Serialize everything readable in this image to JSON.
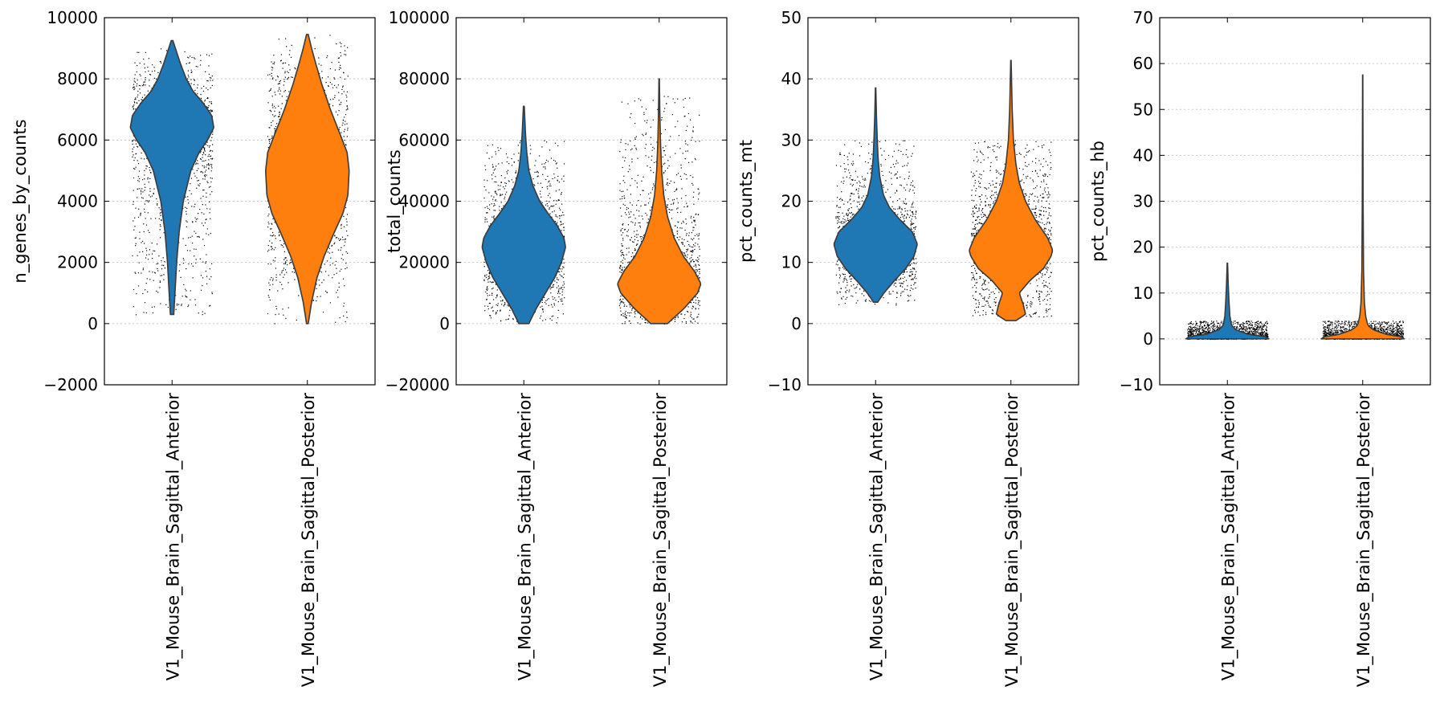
{
  "chart_data": [
    {
      "type": "violin",
      "ylabel": "n_genes_by_counts",
      "ylim": [
        -2000,
        10000
      ],
      "yticks": [
        -2000,
        0,
        2000,
        4000,
        6000,
        8000,
        10000
      ],
      "ytick_labels": [
        "−2000",
        "0",
        "2000",
        "4000",
        "6000",
        "8000",
        "10000"
      ],
      "grid": "y dotted",
      "categories": [
        "V1_Mouse_Brain_Sagittal_Anterior",
        "V1_Mouse_Brain_Sagittal_Posterior"
      ],
      "series": [
        {
          "category": "V1_Mouse_Brain_Sagittal_Anterior",
          "color": "#1f77b4",
          "min": 300,
          "max": 9250,
          "points_min": 300,
          "points_max": 9000,
          "density": [
            [
              300,
              0.04
            ],
            [
              1000,
              0.07
            ],
            [
              2000,
              0.11
            ],
            [
              3000,
              0.17
            ],
            [
              4000,
              0.27
            ],
            [
              5000,
              0.45
            ],
            [
              5600,
              0.65
            ],
            [
              6000,
              0.85
            ],
            [
              6400,
              1.0
            ],
            [
              6800,
              0.95
            ],
            [
              7200,
              0.75
            ],
            [
              7600,
              0.5
            ],
            [
              8000,
              0.34
            ],
            [
              8500,
              0.2
            ],
            [
              9000,
              0.08
            ],
            [
              9250,
              0.02
            ]
          ]
        },
        {
          "category": "V1_Mouse_Brain_Sagittal_Posterior",
          "color": "#ff7f0e",
          "min": 0,
          "max": 9450,
          "points_min": 0,
          "points_max": 9450,
          "density": [
            [
              0,
              0.02
            ],
            [
              700,
              0.1
            ],
            [
              1500,
              0.23
            ],
            [
              2200,
              0.4
            ],
            [
              3000,
              0.65
            ],
            [
              3600,
              0.85
            ],
            [
              4200,
              0.97
            ],
            [
              5000,
              1.0
            ],
            [
              5600,
              0.95
            ],
            [
              6200,
              0.78
            ],
            [
              7000,
              0.55
            ],
            [
              7800,
              0.35
            ],
            [
              8500,
              0.2
            ],
            [
              9000,
              0.1
            ],
            [
              9450,
              0.02
            ]
          ]
        }
      ]
    },
    {
      "type": "violin",
      "ylabel": "total_counts",
      "ylim": [
        -20000,
        100000
      ],
      "yticks": [
        -20000,
        0,
        20000,
        40000,
        60000,
        80000,
        100000
      ],
      "ytick_labels": [
        "−20000",
        "0",
        "20000",
        "40000",
        "60000",
        "80000",
        "100000"
      ],
      "grid": "y dotted",
      "categories": [
        "V1_Mouse_Brain_Sagittal_Anterior",
        "V1_Mouse_Brain_Sagittal_Posterior"
      ],
      "series": [
        {
          "category": "V1_Mouse_Brain_Sagittal_Anterior",
          "color": "#1f77b4",
          "min": 0,
          "max": 71000,
          "points_min": 0,
          "points_max": 60000,
          "density": [
            [
              0,
              0.12
            ],
            [
              5000,
              0.3
            ],
            [
              10000,
              0.52
            ],
            [
              15000,
              0.74
            ],
            [
              20000,
              0.9
            ],
            [
              25000,
              1.0
            ],
            [
              28000,
              0.96
            ],
            [
              32000,
              0.8
            ],
            [
              36000,
              0.58
            ],
            [
              40000,
              0.38
            ],
            [
              45000,
              0.22
            ],
            [
              50000,
              0.12
            ],
            [
              56000,
              0.07
            ],
            [
              62000,
              0.04
            ],
            [
              71000,
              0.01
            ]
          ]
        },
        {
          "category": "V1_Mouse_Brain_Sagittal_Posterior",
          "color": "#ff7f0e",
          "min": 0,
          "max": 80000,
          "points_min": 0,
          "points_max": 75000,
          "density": [
            [
              0,
              0.2
            ],
            [
              5000,
              0.6
            ],
            [
              10000,
              0.92
            ],
            [
              13000,
              1.0
            ],
            [
              17000,
              0.85
            ],
            [
              22000,
              0.58
            ],
            [
              28000,
              0.36
            ],
            [
              35000,
              0.2
            ],
            [
              42000,
              0.11
            ],
            [
              50000,
              0.06
            ],
            [
              60000,
              0.03
            ],
            [
              70000,
              0.015
            ],
            [
              80000,
              0.005
            ]
          ]
        }
      ]
    },
    {
      "type": "violin",
      "ylabel": "pct_counts_mt",
      "ylim": [
        -10,
        50
      ],
      "yticks": [
        -10,
        0,
        10,
        20,
        30,
        40,
        50
      ],
      "ytick_labels": [
        "−10",
        "0",
        "10",
        "20",
        "30",
        "40",
        "50"
      ],
      "grid": "y dotted",
      "categories": [
        "V1_Mouse_Brain_Sagittal_Anterior",
        "V1_Mouse_Brain_Sagittal_Posterior"
      ],
      "series": [
        {
          "category": "V1_Mouse_Brain_Sagittal_Anterior",
          "color": "#1f77b4",
          "min": 3.5,
          "max": 38.5,
          "points_min": 3,
          "points_max": 30,
          "density": [
            [
              3.5,
              0.05
            ],
            [
              5,
              0.2
            ],
            [
              7,
              0.45
            ],
            [
              9,
              0.72
            ],
            [
              11,
              0.92
            ],
            [
              13,
              1.0
            ],
            [
              15,
              0.88
            ],
            [
              17,
              0.58
            ],
            [
              19,
              0.33
            ],
            [
              21,
              0.19
            ],
            [
              24,
              0.1
            ],
            [
              27,
              0.06
            ],
            [
              30,
              0.04
            ],
            [
              34,
              0.02
            ],
            [
              38.5,
              0.005
            ]
          ]
        },
        {
          "category": "V1_Mouse_Brain_Sagittal_Posterior",
          "color": "#ff7f0e",
          "min": 0.5,
          "max": 43,
          "points_min": 1,
          "points_max": 30,
          "density": [
            [
              0.5,
              0.12
            ],
            [
              1.5,
              0.35
            ],
            [
              3,
              0.3
            ],
            [
              5,
              0.2
            ],
            [
              7,
              0.45
            ],
            [
              9,
              0.78
            ],
            [
              11,
              0.96
            ],
            [
              12,
              1.0
            ],
            [
              14,
              0.88
            ],
            [
              17,
              0.58
            ],
            [
              20,
              0.35
            ],
            [
              23,
              0.2
            ],
            [
              26,
              0.12
            ],
            [
              30,
              0.06
            ],
            [
              35,
              0.03
            ],
            [
              43,
              0.005
            ]
          ]
        }
      ]
    },
    {
      "type": "violin",
      "ylabel": "pct_counts_hb",
      "ylim": [
        -10,
        70
      ],
      "yticks": [
        -10,
        0,
        10,
        20,
        30,
        40,
        50,
        60,
        70
      ],
      "ytick_labels": [
        "−10",
        "0",
        "10",
        "20",
        "30",
        "40",
        "50",
        "60",
        "70"
      ],
      "grid": "y dotted",
      "categories": [
        "V1_Mouse_Brain_Sagittal_Anterior",
        "V1_Mouse_Brain_Sagittal_Posterior"
      ],
      "series": [
        {
          "category": "V1_Mouse_Brain_Sagittal_Anterior",
          "color": "#1f77b4",
          "min": 0,
          "max": 16.5,
          "points_min": 0,
          "points_max": 4,
          "density": [
            [
              0,
              1.0
            ],
            [
              0.5,
              0.9
            ],
            [
              1,
              0.5
            ],
            [
              2,
              0.2
            ],
            [
              3,
              0.1
            ],
            [
              5,
              0.06
            ],
            [
              8,
              0.04
            ],
            [
              12,
              0.02
            ],
            [
              16.5,
              0.005
            ]
          ]
        },
        {
          "category": "V1_Mouse_Brain_Sagittal_Posterior",
          "color": "#ff7f0e",
          "min": 0,
          "max": 57.5,
          "points_min": 0,
          "points_max": 4,
          "density": [
            [
              0,
              1.0
            ],
            [
              0.5,
              0.9
            ],
            [
              1,
              0.55
            ],
            [
              2,
              0.25
            ],
            [
              3,
              0.12
            ],
            [
              5,
              0.07
            ],
            [
              8,
              0.04
            ],
            [
              15,
              0.02
            ],
            [
              30,
              0.01
            ],
            [
              57.5,
              0.003
            ]
          ]
        }
      ]
    }
  ]
}
